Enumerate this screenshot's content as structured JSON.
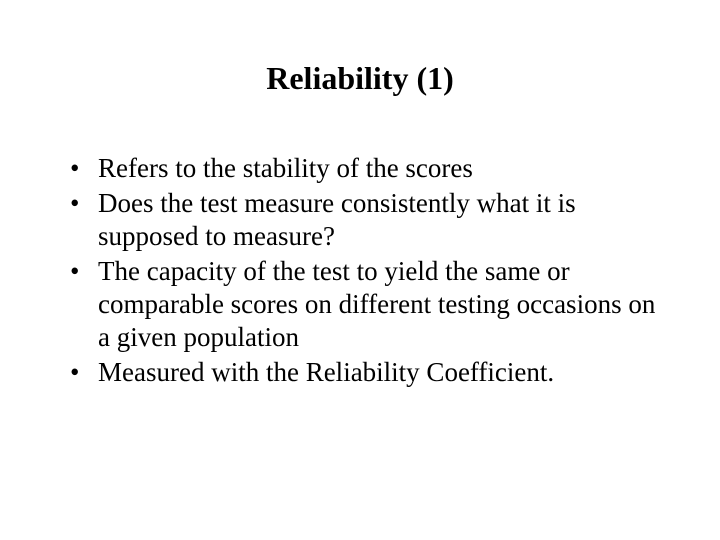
{
  "slide": {
    "title": "Reliability (1)",
    "bullets": [
      "Refers to the stability of the scores",
      "Does the test measure consistently what it is supposed to measure?",
      "The capacity of the test to yield the same or comparable scores on different testing occasions on a given population",
      "Measured with the Reliability Coefficient."
    ]
  },
  "style": {
    "background_color": "#ffffff",
    "text_color": "#000000",
    "font_family": "Times New Roman",
    "title_fontsize": 32,
    "title_fontweight": "bold",
    "body_fontsize": 27,
    "line_height": 1.22
  }
}
